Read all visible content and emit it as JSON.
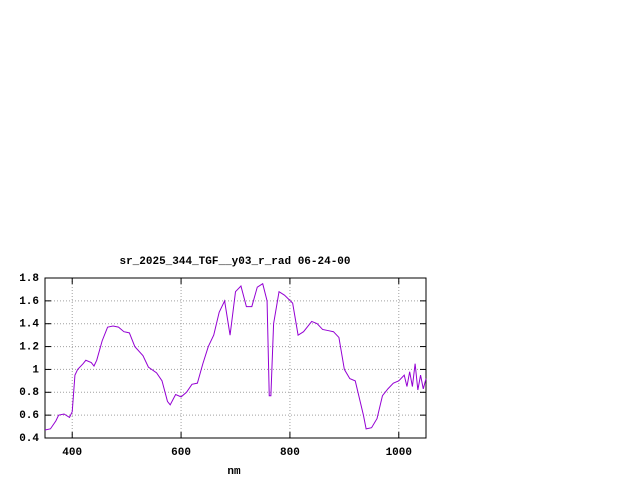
{
  "chart_data": {
    "type": "line",
    "title": "sr_2025_344_TGF__y03_r_rad 06-24-00",
    "x_label": "nm",
    "x": [
      350,
      360,
      370,
      375,
      385,
      395,
      400,
      405,
      410,
      420,
      425,
      435,
      440,
      445,
      455,
      465,
      475,
      485,
      495,
      505,
      515,
      530,
      540,
      555,
      565,
      575,
      580,
      590,
      600,
      610,
      620,
      630,
      640,
      650,
      660,
      670,
      680,
      690,
      700,
      710,
      720,
      730,
      740,
      750,
      758,
      762,
      765,
      770,
      780,
      790,
      805,
      815,
      825,
      840,
      850,
      860,
      870,
      880,
      890,
      900,
      910,
      920,
      935,
      940,
      950,
      960,
      970,
      980,
      990,
      1000,
      1010,
      1015,
      1020,
      1025,
      1030,
      1035,
      1040,
      1045,
      1050
    ],
    "series": [
      {
        "color": "#9400d3",
        "values": [
          0.47,
          0.48,
          0.55,
          0.6,
          0.61,
          0.58,
          0.63,
          0.95,
          1.0,
          1.05,
          1.08,
          1.06,
          1.03,
          1.08,
          1.25,
          1.37,
          1.38,
          1.37,
          1.33,
          1.32,
          1.2,
          1.12,
          1.02,
          0.97,
          0.9,
          0.72,
          0.69,
          0.78,
          0.76,
          0.8,
          0.87,
          0.88,
          1.05,
          1.2,
          1.3,
          1.5,
          1.6,
          1.3,
          1.68,
          1.73,
          1.55,
          1.55,
          1.72,
          1.75,
          1.6,
          0.77,
          0.77,
          1.4,
          1.68,
          1.65,
          1.58,
          1.3,
          1.33,
          1.42,
          1.4,
          1.35,
          1.34,
          1.33,
          1.28,
          1.0,
          0.92,
          0.9,
          0.6,
          0.48,
          0.49,
          0.57,
          0.77,
          0.83,
          0.88,
          0.9,
          0.95,
          0.85,
          0.98,
          0.85,
          1.05,
          0.82,
          0.95,
          0.83,
          0.92
        ]
      }
    ],
    "xlim": [
      350,
      1050
    ],
    "xticks": [
      400,
      600,
      800,
      1000
    ],
    "ylim": [
      0.4,
      1.8
    ],
    "yticks": [
      0.4,
      0.6,
      0.8,
      1,
      1.2,
      1.4,
      1.6,
      1.8
    ],
    "grid": true
  }
}
